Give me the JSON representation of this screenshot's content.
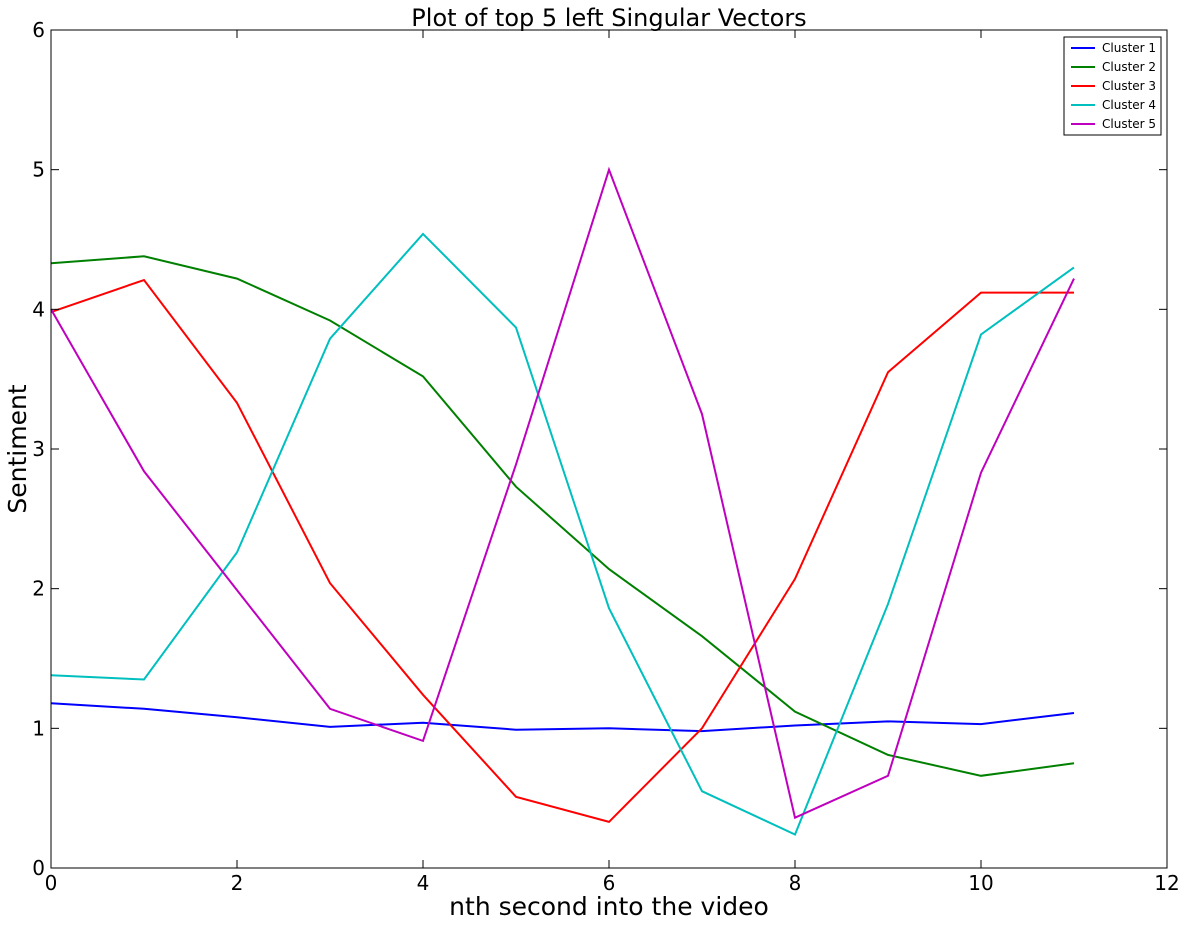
{
  "chart_data": {
    "type": "line",
    "title": "Plot of top 5 left Singular Vectors",
    "xlabel": "nth second into the video",
    "ylabel": "Sentiment",
    "xlim": [
      0,
      12
    ],
    "ylim": [
      0,
      6
    ],
    "xticks": [
      0,
      2,
      4,
      6,
      8,
      10,
      12
    ],
    "yticks": [
      0,
      1,
      2,
      3,
      4,
      5,
      6
    ],
    "grid": false,
    "legend_position": "top-right",
    "x": [
      0,
      1,
      2,
      3,
      4,
      5,
      6,
      7,
      8,
      9,
      10,
      11
    ],
    "series": [
      {
        "name": "Cluster 1",
        "color": "#0000ff",
        "values": [
          1.18,
          1.14,
          1.08,
          1.01,
          1.04,
          0.99,
          1.0,
          0.98,
          1.02,
          1.05,
          1.03,
          1.11
        ]
      },
      {
        "name": "Cluster 2",
        "color": "#008000",
        "values": [
          4.33,
          4.38,
          4.22,
          3.92,
          3.52,
          2.73,
          2.14,
          1.66,
          1.12,
          0.81,
          0.66,
          0.75
        ]
      },
      {
        "name": "Cluster 3",
        "color": "#ff0000",
        "values": [
          3.98,
          4.21,
          3.33,
          2.04,
          1.24,
          0.51,
          0.33,
          1.0,
          2.07,
          3.55,
          4.12,
          4.12
        ]
      },
      {
        "name": "Cluster 4",
        "color": "#00bfbf",
        "values": [
          1.38,
          1.35,
          2.26,
          3.79,
          4.54,
          3.87,
          1.86,
          0.55,
          0.24,
          1.89,
          3.82,
          4.3
        ]
      },
      {
        "name": "Cluster 5",
        "color": "#bf00bf",
        "values": [
          4.0,
          2.84,
          1.99,
          1.14,
          0.91,
          2.89,
          5.0,
          3.25,
          0.36,
          0.66,
          2.83,
          4.22
        ]
      }
    ]
  }
}
